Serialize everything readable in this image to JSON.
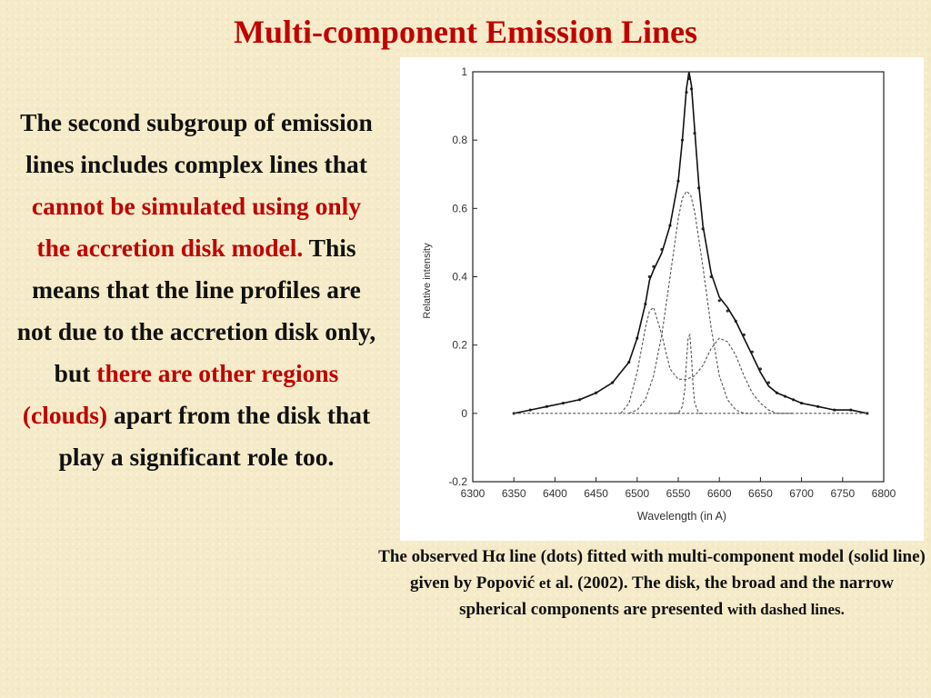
{
  "slide": {
    "title": "Multi-component Emission Lines",
    "body": {
      "part1": "The second subgroup of emission lines includes complex lines that",
      "highlight1": "cannot be simulated using only the accretion disk model.",
      "part2": "This means that the line profiles are not due to the accretion disk only, but",
      "highlight2": "there are other regions (clouds)",
      "part3": "apart from the disk that play a significant role too",
      "end": "."
    },
    "caption": {
      "main": "The observed Hα line (dots) fitted with multi-component model (solid line) given by Popović",
      "small1": "et",
      "main2": "al. (2002). The disk, the broad and the narrow spherical components are presented",
      "small2": "with dashed lines."
    }
  },
  "chart_data": {
    "type": "line",
    "xlabel": "Wavelength (in A)",
    "ylabel": "Relative intensity",
    "xlim": [
      6300,
      6800
    ],
    "ylim": [
      -0.2,
      1.0
    ],
    "x_ticks": [
      6300,
      6350,
      6400,
      6450,
      6500,
      6550,
      6600,
      6650,
      6700,
      6750,
      6800
    ],
    "y_ticks": [
      -0.2,
      0,
      0.2,
      0.4,
      0.6,
      0.8,
      1
    ],
    "x_tick_labels": [
      "6300",
      "6350",
      "6400",
      "6450",
      "6500",
      "6550",
      "6600",
      "6650",
      "6700",
      "6750",
      "6800"
    ],
    "y_tick_labels": [
      "-0.2",
      "0",
      "0.2",
      "0.4",
      "0.6",
      "0.8",
      "1"
    ],
    "grid": false,
    "series": [
      {
        "style": "dots",
        "x": [
          6350,
          6370,
          6390,
          6410,
          6430,
          6450,
          6470,
          6490,
          6500,
          6510,
          6515,
          6520,
          6530,
          6540,
          6550,
          6555,
          6560,
          6563,
          6566,
          6570,
          6575,
          6580,
          6590,
          6600,
          6610,
          6620,
          6630,
          6640,
          6650,
          6660,
          6670,
          6680,
          6690,
          6700,
          6720,
          6740,
          6760,
          6780
        ],
        "y": [
          0.0,
          0.01,
          0.02,
          0.03,
          0.04,
          0.06,
          0.09,
          0.15,
          0.22,
          0.32,
          0.4,
          0.43,
          0.48,
          0.55,
          0.68,
          0.8,
          0.94,
          0.98,
          0.95,
          0.82,
          0.66,
          0.54,
          0.4,
          0.33,
          0.3,
          0.27,
          0.23,
          0.18,
          0.13,
          0.09,
          0.06,
          0.05,
          0.04,
          0.03,
          0.02,
          0.01,
          0.01,
          0.0
        ]
      },
      {
        "style": "solid",
        "x": [
          6350,
          6370,
          6390,
          6410,
          6430,
          6450,
          6470,
          6490,
          6500,
          6510,
          6515,
          6520,
          6530,
          6540,
          6550,
          6555,
          6560,
          6563,
          6566,
          6570,
          6575,
          6580,
          6590,
          6600,
          6610,
          6620,
          6630,
          6640,
          6650,
          6660,
          6670,
          6680,
          6690,
          6700,
          6720,
          6740,
          6760,
          6780
        ],
        "y": [
          0.0,
          0.01,
          0.02,
          0.03,
          0.04,
          0.06,
          0.09,
          0.15,
          0.22,
          0.32,
          0.39,
          0.42,
          0.47,
          0.55,
          0.68,
          0.8,
          0.95,
          1.0,
          0.96,
          0.83,
          0.67,
          0.55,
          0.41,
          0.34,
          0.31,
          0.27,
          0.22,
          0.17,
          0.12,
          0.08,
          0.06,
          0.05,
          0.04,
          0.03,
          0.02,
          0.01,
          0.01,
          0.0
        ]
      },
      {
        "style": "dashed",
        "x": [
          6480,
          6490,
          6500,
          6510,
          6515,
          6520,
          6530,
          6540,
          6550,
          6560,
          6570,
          6580,
          6590,
          6600,
          6610,
          6620,
          6630,
          6640,
          6650,
          6660,
          6670,
          6680,
          6690
        ],
        "y": [
          0.0,
          0.03,
          0.12,
          0.25,
          0.3,
          0.31,
          0.23,
          0.13,
          0.1,
          0.1,
          0.11,
          0.14,
          0.19,
          0.22,
          0.21,
          0.17,
          0.11,
          0.06,
          0.03,
          0.01,
          0.0,
          0.0,
          0.0
        ]
      },
      {
        "style": "dashed",
        "x": [
          6490,
          6500,
          6510,
          6520,
          6530,
          6540,
          6550,
          6555,
          6560,
          6565,
          6570,
          6580,
          6590,
          6600,
          6610,
          6620,
          6630,
          6640
        ],
        "y": [
          0.0,
          0.01,
          0.04,
          0.11,
          0.23,
          0.4,
          0.57,
          0.63,
          0.65,
          0.64,
          0.59,
          0.43,
          0.25,
          0.11,
          0.04,
          0.01,
          0.0,
          0.0
        ]
      },
      {
        "style": "dashed",
        "x": [
          6540,
          6550,
          6555,
          6558,
          6560,
          6562,
          6564,
          6566,
          6568,
          6570,
          6575,
          6580
        ],
        "y": [
          0.0,
          0.0,
          0.02,
          0.07,
          0.15,
          0.22,
          0.23,
          0.17,
          0.08,
          0.03,
          0.0,
          0.0
        ]
      },
      {
        "style": "dashed",
        "x": [
          6350,
          6480,
          6690,
          6780
        ],
        "y": [
          0.0,
          0.0,
          0.0,
          0.0
        ]
      }
    ]
  }
}
